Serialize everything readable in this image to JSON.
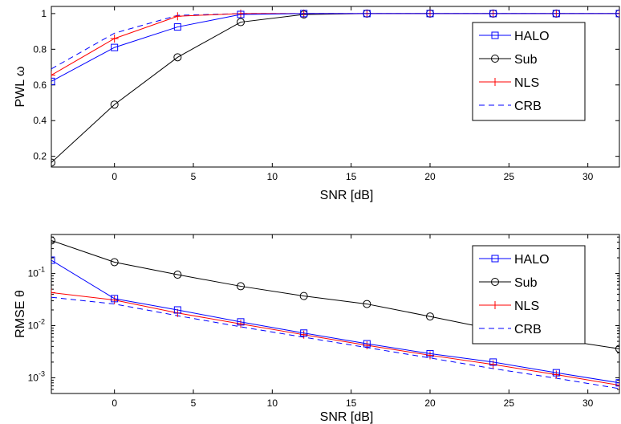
{
  "chart_data": [
    {
      "type": "line",
      "xlabel": "SNR [dB]",
      "ylabel": "PWL ω",
      "xlim": [
        -4,
        32
      ],
      "ylim": [
        0.14,
        1.04
      ],
      "yscale": "linear",
      "xticks": [
        0,
        5,
        10,
        15,
        20,
        25,
        30
      ],
      "yticks": [
        0.2,
        0.4,
        0.6,
        0.8,
        1
      ],
      "ytick_labels": [
        "0.2",
        "0.4",
        "0.6",
        "0.8",
        "1"
      ],
      "legend_position": "right",
      "x": [
        -4,
        0,
        4,
        8,
        12,
        16,
        20,
        24,
        28,
        32
      ],
      "series": [
        {
          "name": "HALO",
          "color": "#0000ff",
          "marker": "square",
          "dash": "solid",
          "values": [
            0.62,
            0.81,
            0.925,
            0.995,
            1,
            1,
            1,
            1,
            1,
            1
          ]
        },
        {
          "name": "Sub",
          "color": "#000000",
          "marker": "circle",
          "dash": "solid",
          "values": [
            0.165,
            0.49,
            0.755,
            0.952,
            0.995,
            1,
            1,
            1,
            1,
            1
          ]
        },
        {
          "name": "NLS",
          "color": "#ff0000",
          "marker": "plus",
          "dash": "solid",
          "values": [
            0.655,
            0.86,
            0.985,
            1,
            1,
            1,
            1,
            1,
            1,
            1
          ]
        },
        {
          "name": "CRB",
          "color": "#0000ff",
          "marker": "none",
          "dash": "dashed",
          "values": [
            0.69,
            0.89,
            0.99,
            1,
            1,
            1,
            1,
            1,
            1,
            1
          ]
        }
      ]
    },
    {
      "type": "line",
      "xlabel": "SNR [dB]",
      "ylabel": "RMSE θ",
      "xlim": [
        -4,
        32
      ],
      "ylim": [
        0.0005,
        0.56
      ],
      "yscale": "log",
      "xticks": [
        0,
        5,
        10,
        15,
        20,
        25,
        30
      ],
      "yticks": [
        0.001,
        0.01,
        0.1
      ],
      "ytick_labels": [
        [
          "10",
          "-3"
        ],
        [
          "10",
          "-2"
        ],
        [
          "10",
          "-1"
        ]
      ],
      "legend_position": "right",
      "x": [
        -4,
        0,
        4,
        8,
        12,
        16,
        20,
        24,
        28,
        32
      ],
      "series": [
        {
          "name": "HALO",
          "color": "#0000ff",
          "marker": "square",
          "dash": "solid",
          "values": [
            0.18,
            0.033,
            0.02,
            0.0118,
            0.0072,
            0.0045,
            0.0029,
            0.002,
            0.00125,
            0.0008
          ]
        },
        {
          "name": "Sub",
          "color": "#000000",
          "marker": "circle",
          "dash": "solid",
          "values": [
            0.43,
            0.165,
            0.095,
            0.057,
            0.037,
            0.026,
            0.015,
            0.0085,
            0.0055,
            0.0036
          ]
        },
        {
          "name": "NLS",
          "color": "#ff0000",
          "marker": "plus",
          "dash": "solid",
          "values": [
            0.043,
            0.031,
            0.0175,
            0.0108,
            0.0067,
            0.0042,
            0.0027,
            0.0018,
            0.00115,
            0.00072
          ]
        },
        {
          "name": "CRB",
          "color": "#0000ff",
          "marker": "none",
          "dash": "dashed",
          "values": [
            0.035,
            0.026,
            0.0155,
            0.0095,
            0.006,
            0.0038,
            0.0024,
            0.0015,
            0.00098,
            0.00062
          ]
        }
      ]
    }
  ]
}
